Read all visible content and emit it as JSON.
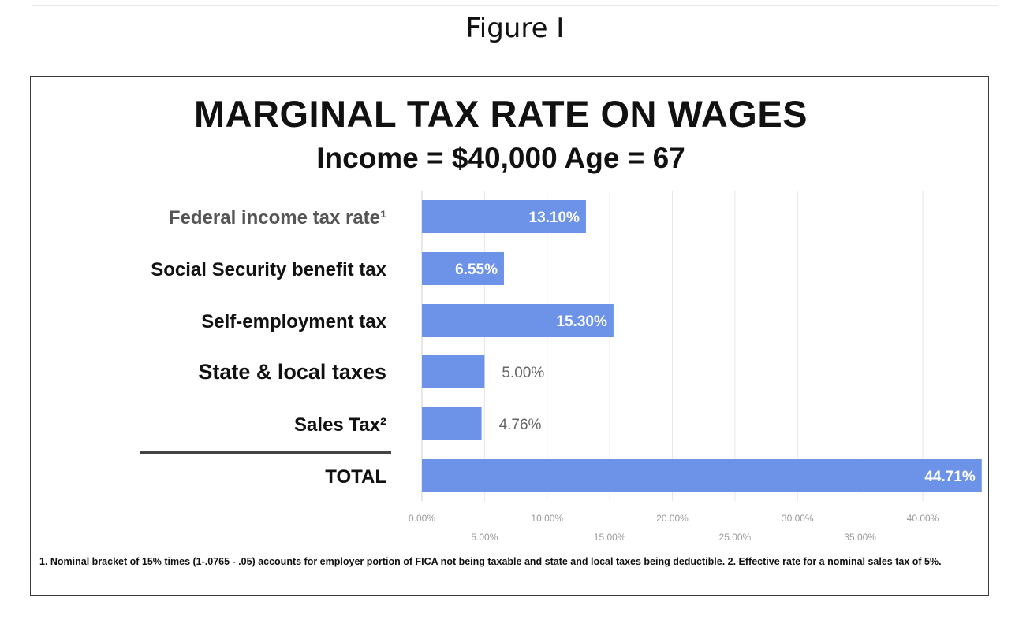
{
  "figure_label": "Figure I",
  "footnote": "1. Nominal bracket of 15% times (1-.0765 - .05) accounts  for employer  portion of FICA not being taxable and state and local taxes being deductible.  2. Effective rate for a nominal  sales tax of 5%.",
  "chart_data": {
    "type": "bar",
    "orientation": "horizontal",
    "title": "MARGINAL  TAX RATE ON WAGES",
    "subtitle": "Income = $40,000   Age = 67",
    "categories": [
      "Federal income tax rate¹",
      "Social  Security benefit tax",
      "Self-employment tax",
      "State & local taxes",
      "Sales Tax²",
      "TOTAL"
    ],
    "values": [
      13.1,
      6.55,
      15.3,
      5.0,
      4.76,
      44.71
    ],
    "data_labels": [
      "13.10%",
      "6.55%",
      "15.30%",
      "5.00%",
      "4.76%",
      "44.71%"
    ],
    "xlim": [
      0,
      45
    ],
    "x_ticks": [
      "0.00%",
      "5.00%",
      "10.00%",
      "15.00%",
      "20.00%",
      "25.00%",
      "30.00%",
      "35.00%",
      "40.00%"
    ],
    "grid": true,
    "bar_color": "#6d93e8",
    "category_label_colors": [
      "#555555",
      "#111111",
      "#111111",
      "#111111",
      "#111111",
      "#111111"
    ]
  }
}
